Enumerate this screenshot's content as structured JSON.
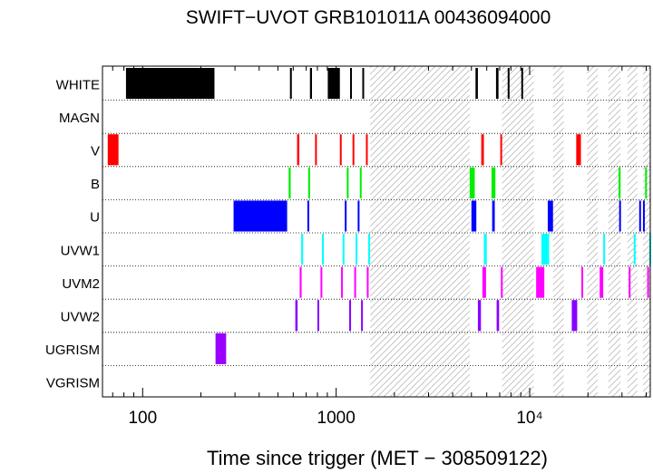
{
  "chart_data": {
    "type": "timeline",
    "title": "SWIFT−UVOT GRB101011A 00436094000",
    "xlabel": "Time since trigger (MET − 308509122)",
    "xscale": "log",
    "xlim": [
      62,
      42000
    ],
    "x_tick_labels": [
      "100",
      "1000",
      "10⁴"
    ],
    "x_tick_values": [
      100,
      1000,
      10000
    ],
    "rows": [
      "WHITE",
      "MAGN",
      "V",
      "B",
      "U",
      "UVW1",
      "UVM2",
      "UVW2",
      "UGRISM",
      "VGRISM"
    ],
    "hatched_intervals": [
      [
        1500,
        4900
      ],
      [
        7200,
        10500
      ],
      [
        13200,
        15000
      ],
      [
        19800,
        22500
      ],
      [
        25500,
        29500
      ],
      [
        32000,
        36000
      ],
      [
        38500,
        42000
      ]
    ],
    "series": [
      {
        "filter": "WHITE",
        "color": "#000000",
        "intervals": [
          [
            82,
            235
          ],
          [
            577,
            590
          ],
          [
            732,
            750
          ],
          [
            905,
            1045
          ],
          [
            1180,
            1195
          ],
          [
            1365,
            1380
          ],
          [
            5250,
            5400
          ],
          [
            6700,
            6900
          ],
          [
            7700,
            7780
          ],
          [
            9050,
            9150
          ]
        ]
      },
      {
        "filter": "MAGN",
        "color": "#000000",
        "intervals": []
      },
      {
        "filter": "V",
        "color": "#ff0000",
        "intervals": [
          [
            66,
            75
          ],
          [
            628,
            645
          ],
          [
            778,
            792
          ],
          [
            1045,
            1060
          ],
          [
            1215,
            1232
          ],
          [
            1425,
            1443
          ],
          [
            5620,
            5800
          ],
          [
            7050,
            7200
          ],
          [
            17400,
            18400
          ]
        ]
      },
      {
        "filter": "B",
        "color": "#00ee00",
        "intervals": [
          [
            568,
            582
          ],
          [
            717,
            733
          ],
          [
            1135,
            1152
          ],
          [
            1325,
            1342
          ],
          [
            4900,
            5200
          ],
          [
            6350,
            6650
          ],
          [
            28800,
            29500
          ],
          [
            39500,
            40000
          ]
        ]
      },
      {
        "filter": "U",
        "color": "#0000ff",
        "intervals": [
          [
            295,
            558
          ],
          [
            710,
            722
          ],
          [
            1108,
            1120
          ],
          [
            1292,
            1305
          ],
          [
            5000,
            5300
          ],
          [
            6400,
            6600
          ],
          [
            12400,
            13200
          ],
          [
            29000,
            29400
          ],
          [
            36800,
            37300
          ],
          [
            38500,
            39000
          ]
        ]
      },
      {
        "filter": "UVW1",
        "color": "#00ffff",
        "intervals": [
          [
            660,
            675
          ],
          [
            845,
            858
          ],
          [
            1080,
            1093
          ],
          [
            1260,
            1273
          ],
          [
            1465,
            1480
          ],
          [
            5800,
            6000
          ],
          [
            11500,
            12600
          ],
          [
            24000,
            24500
          ],
          [
            34500,
            35000
          ],
          [
            41500,
            42000
          ]
        ]
      },
      {
        "filter": "UVM2",
        "color": "#ff00ff",
        "intervals": [
          [
            648,
            663
          ],
          [
            830,
            845
          ],
          [
            1060,
            1075
          ],
          [
            1240,
            1255
          ],
          [
            1440,
            1455
          ],
          [
            5700,
            5950
          ],
          [
            7100,
            7200
          ],
          [
            10800,
            11900
          ],
          [
            18500,
            18900
          ],
          [
            23000,
            24000
          ],
          [
            32500,
            33000
          ],
          [
            40500,
            41000
          ]
        ]
      },
      {
        "filter": "UVW2",
        "color": "#8800ff",
        "intervals": [
          [
            615,
            632
          ],
          [
            800,
            815
          ],
          [
            1168,
            1182
          ],
          [
            1345,
            1360
          ],
          [
            5400,
            5600
          ],
          [
            6750,
            6950
          ],
          [
            16500,
            17600
          ]
        ]
      },
      {
        "filter": "UGRISM",
        "color": "#9900ff",
        "intervals": [
          [
            238,
            270
          ]
        ]
      },
      {
        "filter": "VGRISM",
        "color": "#000000",
        "intervals": []
      }
    ]
  }
}
